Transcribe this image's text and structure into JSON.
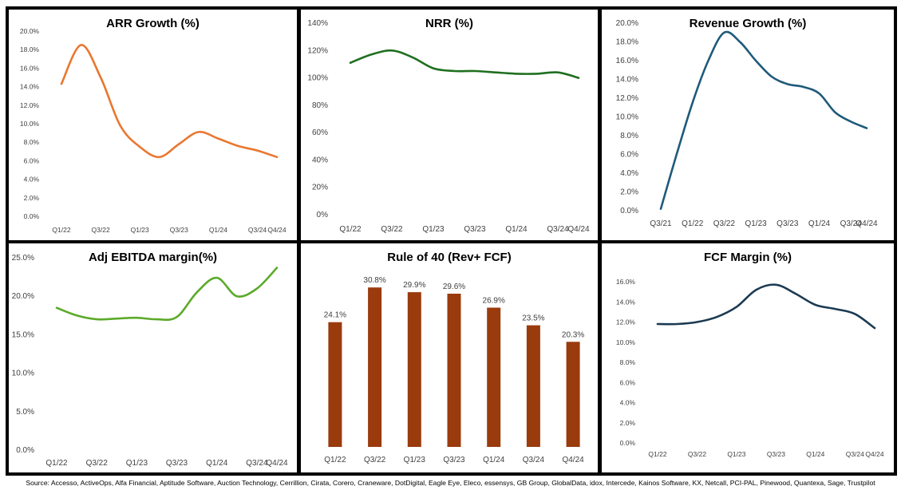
{
  "source_text": "Source: Accesso, ActiveOps, Alfa Financial, Aptitude Software, Auction Technology, Cerrillion, Cirata, Corero, Craneware, DotDigital, Eagle Eye, Eleco, essensys, GB Group, GlobalData, idox, Intercede, Kainos Software, KX, Netcall, PCI-PAL, Pinewood, Quantexa, Sage, Trustpilot",
  "chart_data": [
    {
      "id": "arr",
      "type": "line",
      "title": "ARR Growth (%)",
      "color": "#E9772F",
      "categories": [
        "Q1/22",
        "Q2/22",
        "Q3/22",
        "Q4/22",
        "Q1/23",
        "Q2/23",
        "Q3/23",
        "Q4/23",
        "Q1/24",
        "Q2/24",
        "Q3/24",
        "Q4/24"
      ],
      "values": [
        14.3,
        18.5,
        15.0,
        9.8,
        7.5,
        6.4,
        7.8,
        9.1,
        8.4,
        7.6,
        7.1,
        6.4
      ],
      "tick_labels": [
        "Q1/22",
        "Q3/22",
        "Q1/23",
        "Q3/23",
        "Q1/24",
        "Q3/24",
        "Q4/24"
      ],
      "yticks": [
        "0.0%",
        "2.0%",
        "4.0%",
        "6.0%",
        "8.0%",
        "10.0%",
        "12.0%",
        "14.0%",
        "16.0%",
        "18.0%",
        "20.0%"
      ],
      "ylim": [
        0,
        20
      ]
    },
    {
      "id": "nrr",
      "type": "line",
      "title": "NRR (%)",
      "color": "#1F6F1F",
      "categories": [
        "Q1/22",
        "Q2/22",
        "Q3/22",
        "Q4/22",
        "Q1/23",
        "Q2/23",
        "Q3/23",
        "Q4/23",
        "Q1/24",
        "Q2/24",
        "Q3/24",
        "Q4/24"
      ],
      "values": [
        111,
        117,
        120,
        115,
        107,
        105,
        105,
        104,
        103,
        103,
        104,
        100
      ],
      "tick_labels": [
        "Q1/22",
        "Q3/22",
        "Q1/23",
        "Q3/23",
        "Q1/24",
        "Q3/24",
        "Q4/24"
      ],
      "yticks": [
        "0%",
        "20%",
        "40%",
        "60%",
        "80%",
        "100%",
        "120%",
        "140%"
      ],
      "ylim": [
        0,
        140
      ]
    },
    {
      "id": "rev",
      "type": "line",
      "title": "Revenue Growth (%)",
      "color": "#1F5A7A",
      "categories": [
        "Q3/21",
        "Q4/21",
        "Q1/22",
        "Q2/22",
        "Q3/22",
        "Q4/22",
        "Q1/23",
        "Q2/23",
        "Q3/23",
        "Q4/23",
        "Q1/24",
        "Q2/24",
        "Q3/24",
        "Q4/24"
      ],
      "values": [
        0.2,
        6.0,
        11.5,
        16.0,
        19.0,
        18.0,
        16.0,
        14.3,
        13.5,
        13.2,
        12.5,
        10.5,
        9.5,
        8.8
      ],
      "tick_labels": [
        "Q3/21",
        "Q1/22",
        "Q3/22",
        "Q1/23",
        "Q3/23",
        "Q1/24",
        "Q3/24",
        "Q4/24"
      ],
      "yticks": [
        "0.0%",
        "2.0%",
        "4.0%",
        "6.0%",
        "8.0%",
        "10.0%",
        "12.0%",
        "14.0%",
        "16.0%",
        "18.0%",
        "20.0%"
      ],
      "ylim": [
        0,
        20
      ]
    },
    {
      "id": "ebitda",
      "type": "line",
      "title": "Adj EBITDA margin(%)",
      "color": "#5BAA2A",
      "categories": [
        "Q1/22",
        "Q2/22",
        "Q3/22",
        "Q4/22",
        "Q1/23",
        "Q2/23",
        "Q3/23",
        "Q4/23",
        "Q1/24",
        "Q2/24",
        "Q3/24",
        "Q4/24"
      ],
      "values": [
        18.5,
        17.5,
        17.0,
        17.1,
        17.2,
        17.0,
        17.3,
        20.5,
        22.4,
        20.0,
        21.0,
        23.7
      ],
      "tick_labels": [
        "Q1/22",
        "Q3/22",
        "Q1/23",
        "Q3/23",
        "Q1/24",
        "Q3/24",
        "Q4/24"
      ],
      "yticks": [
        "0.0%",
        "5.0%",
        "10.0%",
        "15.0%",
        "20.0%",
        "25.0%"
      ],
      "ylim": [
        0,
        25
      ]
    },
    {
      "id": "rule40",
      "type": "bar",
      "title": "Rule of 40  (Rev+ FCF)",
      "color": "#9A3B0E",
      "categories": [
        "Q1/22",
        "Q3/22",
        "Q1/23",
        "Q3/23",
        "Q1/24",
        "Q3/24",
        "Q4/24"
      ],
      "values": [
        24.1,
        30.8,
        29.9,
        29.6,
        26.9,
        23.5,
        20.3
      ],
      "data_labels": [
        "24.1%",
        "30.8%",
        "29.9%",
        "29.6%",
        "26.9%",
        "23.5%",
        "20.3%"
      ],
      "ylim": [
        0,
        35
      ]
    },
    {
      "id": "fcf",
      "type": "line",
      "title": "FCF Margin  (%)",
      "color": "#1B3A52",
      "categories": [
        "Q1/22",
        "Q2/22",
        "Q3/22",
        "Q4/22",
        "Q1/23",
        "Q2/23",
        "Q3/23",
        "Q4/23",
        "Q1/24",
        "Q2/24",
        "Q3/24",
        "Q4/24"
      ],
      "values": [
        11.8,
        11.8,
        12.0,
        12.5,
        13.5,
        15.2,
        15.7,
        14.8,
        13.7,
        13.3,
        12.8,
        11.4
      ],
      "tick_labels": [
        "Q1/22",
        "Q3/22",
        "Q1/23",
        "Q3/23",
        "Q1/24",
        "Q3/24",
        "Q4/24"
      ],
      "yticks": [
        "0.0%",
        "2.0%",
        "4.0%",
        "6.0%",
        "8.0%",
        "10.0%",
        "12.0%",
        "14.0%",
        "16.0%"
      ],
      "ylim": [
        0,
        16
      ]
    }
  ]
}
